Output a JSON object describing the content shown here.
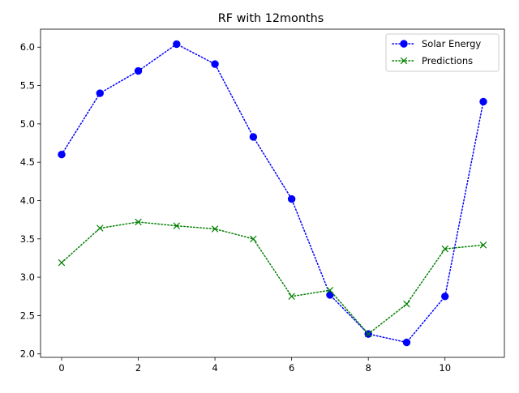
{
  "chart_data": {
    "type": "line",
    "title": "RF with 12months",
    "xlabel": "",
    "ylabel": "",
    "xlim": [
      -0.55,
      11.55
    ],
    "ylim": [
      1.955,
      6.235
    ],
    "xticks": [
      0,
      2,
      4,
      6,
      8,
      10
    ],
    "xtick_labels": [
      "0",
      "2",
      "4",
      "6",
      "8",
      "10"
    ],
    "yticks": [
      2.0,
      2.5,
      3.0,
      3.5,
      4.0,
      4.5,
      5.0,
      5.5,
      6.0
    ],
    "ytick_labels": [
      "2.0",
      "2.5",
      "3.0",
      "3.5",
      "4.0",
      "4.5",
      "5.0",
      "5.5",
      "6.0"
    ],
    "grid": false,
    "legend_position": "upper right",
    "x": [
      0,
      1,
      2,
      3,
      4,
      5,
      6,
      7,
      8,
      9,
      10,
      11
    ],
    "series": [
      {
        "name": "Solar Energy",
        "color": "#0000ff",
        "marker": "circle",
        "linestyle": "dotted",
        "values": [
          4.6,
          5.4,
          5.69,
          6.04,
          5.78,
          4.83,
          4.02,
          2.77,
          2.26,
          2.15,
          2.75,
          5.29
        ]
      },
      {
        "name": "Predictions",
        "color": "#008000",
        "marker": "x",
        "linestyle": "dotted",
        "values": [
          3.19,
          3.64,
          3.72,
          3.67,
          3.63,
          3.5,
          2.75,
          2.83,
          2.26,
          2.65,
          3.37,
          3.42
        ]
      }
    ]
  }
}
